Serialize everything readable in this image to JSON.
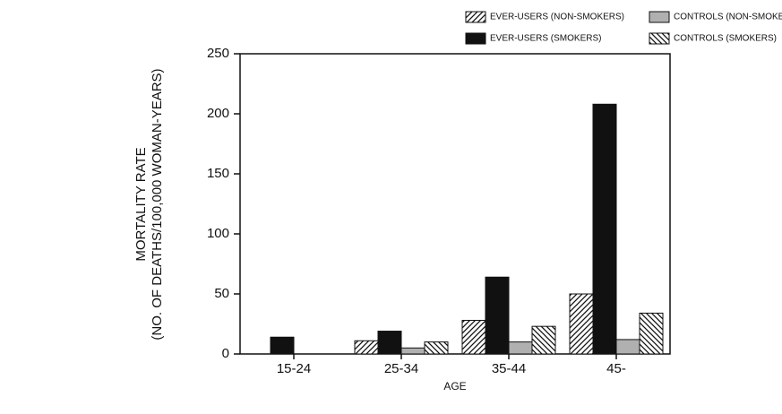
{
  "chart_data": {
    "type": "bar",
    "y_label": [
      "MORTALITY RATE",
      "(NO. OF DEATHS/100,000 WOMAN-YEARS)"
    ],
    "x_label": "AGE",
    "categories": [
      "15-24",
      "25-34",
      "35-44",
      "45-"
    ],
    "series": [
      {
        "name": "EVER-USERS (NON-SMOKERS)",
        "color": "#ffffff",
        "pattern": "diagonal-up",
        "values": [
          0,
          11,
          28,
          50
        ]
      },
      {
        "name": "EVER-USERS (SMOKERS)",
        "color": "#111111",
        "pattern": "solid",
        "values": [
          14,
          19,
          64,
          208
        ]
      },
      {
        "name": "CONTROLS (NON-SMOKERS)",
        "color": "#b0b0b0",
        "pattern": "solid",
        "values": [
          0,
          5,
          10,
          12
        ]
      },
      {
        "name": "CONTROLS (SMOKERS)",
        "color": "#ffffff",
        "pattern": "diagonal-down",
        "values": [
          0,
          10,
          23,
          34
        ]
      }
    ],
    "ylim": [
      0,
      250
    ],
    "yticks": [
      0,
      50,
      100,
      150,
      200,
      250
    ]
  }
}
